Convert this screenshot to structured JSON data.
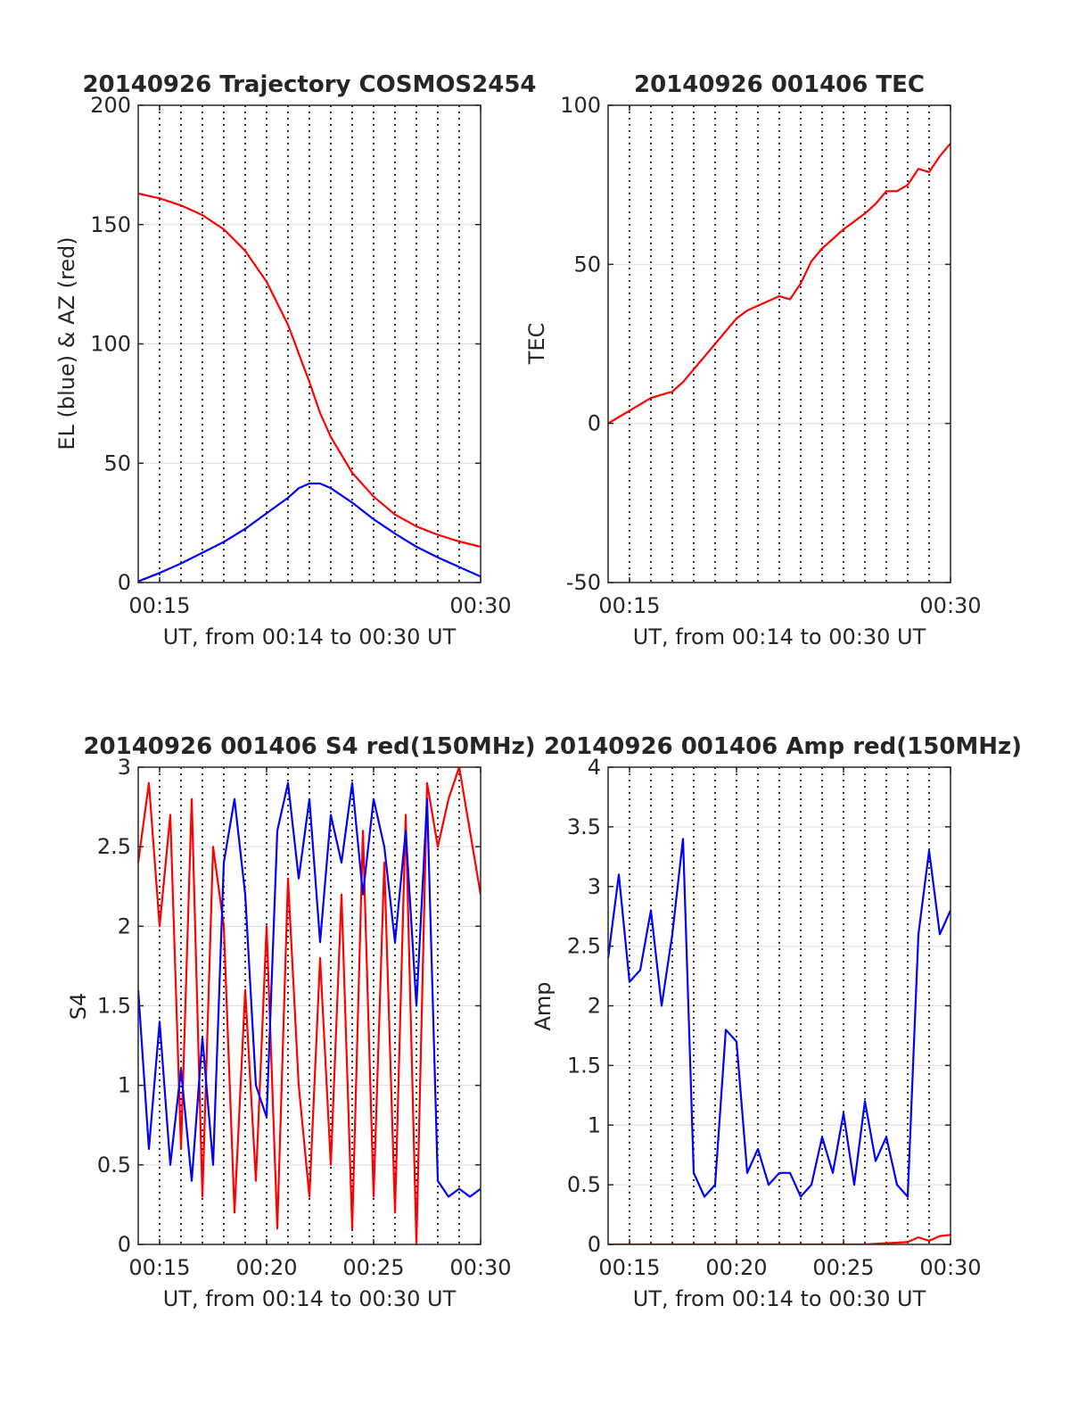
{
  "figure": {
    "background": "#ffffff",
    "colors": {
      "red": "#ff0000",
      "blue": "#0000ff",
      "grid": "#dcdcdc",
      "axis": "#262626"
    }
  },
  "chart_data": [
    {
      "type": "line",
      "title": "20140926 Trajectory COSMOS2454",
      "xlabel": "UT, from 00:14 to 00:30 UT",
      "ylabel": "EL (blue) & AZ (red)",
      "xlim": [
        "00:14:00",
        "00:30:00"
      ],
      "ylim": [
        0,
        200
      ],
      "yticks": [
        0,
        50,
        100,
        150,
        200
      ],
      "xticks": [
        {
          "t": "00:15:00",
          "label": "00:15"
        },
        {
          "t": "00:30:00",
          "label": "00:30"
        }
      ],
      "vlines_minutes": [
        15,
        16,
        17,
        18,
        19,
        20,
        21,
        22,
        23,
        24,
        25,
        26,
        27,
        28,
        29
      ],
      "grid": true,
      "series": [
        {
          "color": "#ff0000",
          "x": [
            "00:14:00",
            "00:15:00",
            "00:16:00",
            "00:17:00",
            "00:18:00",
            "00:19:00",
            "00:20:00",
            "00:21:00",
            "00:21:30",
            "00:22:00",
            "00:22:30",
            "00:23:00",
            "00:24:00",
            "00:25:00",
            "00:26:00",
            "00:27:00",
            "00:28:00",
            "00:29:00",
            "00:30:00"
          ],
          "values": [
            163,
            161,
            158,
            154,
            148,
            139,
            126,
            108,
            96,
            84,
            71,
            61,
            46,
            36,
            28.5,
            23.5,
            20,
            17.2,
            15
          ]
        },
        {
          "color": "#0000ff",
          "x": [
            "00:14:00",
            "00:15:00",
            "00:16:00",
            "00:17:00",
            "00:18:00",
            "00:19:00",
            "00:20:00",
            "00:21:00",
            "00:21:30",
            "00:22:00",
            "00:22:30",
            "00:23:00",
            "00:24:00",
            "00:25:00",
            "00:26:00",
            "00:27:00",
            "00:28:00",
            "00:29:00",
            "00:30:00"
          ],
          "values": [
            0.5,
            4,
            8,
            12.5,
            17,
            22.5,
            29,
            35.5,
            39.5,
            41.5,
            41.5,
            39.5,
            33.5,
            26.5,
            20.5,
            15,
            10.5,
            6.5,
            2.5
          ]
        }
      ]
    },
    {
      "type": "line",
      "title": "20140926 001406 TEC",
      "xlabel": "UT, from 00:14 to 00:30 UT",
      "ylabel": "TEC",
      "xlim": [
        "00:14:00",
        "00:30:00"
      ],
      "ylim": [
        -50,
        100
      ],
      "yticks": [
        -50,
        0,
        50,
        100
      ],
      "xticks": [
        {
          "t": "00:15:00",
          "label": "00:15"
        },
        {
          "t": "00:30:00",
          "label": "00:30"
        }
      ],
      "vlines_minutes": [
        15,
        16,
        17,
        18,
        19,
        20,
        21,
        22,
        23,
        24,
        25,
        26,
        27,
        28,
        29
      ],
      "grid": true,
      "series": [
        {
          "color": "#ff0000",
          "x": [
            "00:14:00",
            "00:14:30",
            "00:15:00",
            "00:15:30",
            "00:16:00",
            "00:16:30",
            "00:17:00",
            "00:17:30",
            "00:18:00",
            "00:18:30",
            "00:19:00",
            "00:19:30",
            "00:20:00",
            "00:20:30",
            "00:21:00",
            "00:21:30",
            "00:22:00",
            "00:22:30",
            "00:23:00",
            "00:23:30",
            "00:24:00",
            "00:24:30",
            "00:25:00",
            "00:25:30",
            "00:26:00",
            "00:26:30",
            "00:27:00",
            "00:27:30",
            "00:28:00",
            "00:28:30",
            "00:29:00",
            "00:29:30",
            "00:30:00"
          ],
          "values": [
            0,
            2,
            4,
            6,
            8,
            9,
            10,
            13,
            17,
            21,
            25,
            29,
            33,
            35.5,
            37,
            38.5,
            40,
            39,
            44,
            51,
            55,
            58,
            61,
            63.5,
            66,
            69,
            73,
            73,
            75,
            80,
            79,
            84,
            88
          ]
        }
      ]
    },
    {
      "type": "line",
      "title": "20140926 001406 S4 red(150MHz)",
      "xlabel": "UT, from 00:14 to 00:30 UT",
      "ylabel": "S4",
      "xlim": [
        "00:14:00",
        "00:30:00"
      ],
      "ylim": [
        0,
        3
      ],
      "yticks": [
        0,
        0.5,
        1,
        1.5,
        2,
        2.5,
        3
      ],
      "ytick_labels": [
        "0",
        "0.5",
        "1",
        "1.5",
        "2",
        "2.5",
        "3"
      ],
      "xticks": [
        {
          "t": "00:15:00",
          "label": "00:15"
        },
        {
          "t": "00:20:00",
          "label": "00:20"
        },
        {
          "t": "00:25:00",
          "label": "00:25"
        },
        {
          "t": "00:30:00",
          "label": "00:30"
        }
      ],
      "vlines_minutes": [
        15,
        16,
        17,
        18,
        19,
        20,
        21,
        22,
        23,
        24,
        25,
        26,
        27,
        28,
        29
      ],
      "grid": true,
      "series": [
        {
          "color": "#ff0000",
          "x": [
            "00:14:00",
            "00:14:30",
            "00:15:00",
            "00:15:30",
            "00:16:00",
            "00:16:30",
            "00:17:00",
            "00:17:30",
            "00:18:00",
            "00:18:30",
            "00:19:00",
            "00:19:30",
            "00:20:00",
            "00:20:30",
            "00:21:00",
            "00:21:30",
            "00:22:00",
            "00:22:30",
            "00:23:00",
            "00:23:30",
            "00:24:00",
            "00:24:30",
            "00:25:00",
            "00:25:30",
            "00:26:00",
            "00:26:30",
            "00:27:00",
            "00:27:30",
            "00:28:00",
            "00:28:30",
            "00:29:00",
            "00:29:30",
            "00:30:00"
          ],
          "values": [
            2.4,
            2.9,
            2.0,
            2.7,
            0.6,
            2.8,
            0.3,
            2.5,
            2.0,
            0.2,
            1.6,
            0.4,
            2.0,
            0.1,
            2.3,
            1.0,
            0.3,
            1.8,
            0.5,
            2.2,
            0.1,
            2.6,
            0.3,
            2.4,
            0.2,
            2.7,
            0.0,
            2.9,
            2.5,
            2.8,
            3.0,
            2.6,
            2.2
          ]
        },
        {
          "color": "#0000ff",
          "x": [
            "00:14:00",
            "00:14:30",
            "00:15:00",
            "00:15:30",
            "00:16:00",
            "00:16:30",
            "00:17:00",
            "00:17:30",
            "00:18:00",
            "00:18:30",
            "00:19:00",
            "00:19:30",
            "00:20:00",
            "00:20:30",
            "00:21:00",
            "00:21:30",
            "00:22:00",
            "00:22:30",
            "00:23:00",
            "00:23:30",
            "00:24:00",
            "00:24:30",
            "00:25:00",
            "00:25:30",
            "00:26:00",
            "00:26:30",
            "00:27:00",
            "00:27:30",
            "00:28:00",
            "00:28:30",
            "00:29:00",
            "00:29:30",
            "00:30:00"
          ],
          "values": [
            1.6,
            0.6,
            1.4,
            0.5,
            1.1,
            0.4,
            1.3,
            0.5,
            2.4,
            2.8,
            2.2,
            1.0,
            0.8,
            2.6,
            2.9,
            2.3,
            2.8,
            1.9,
            2.7,
            2.4,
            2.9,
            2.2,
            2.8,
            2.5,
            1.9,
            2.6,
            1.5,
            2.8,
            0.4,
            0.3,
            0.35,
            0.3,
            0.35
          ]
        }
      ]
    },
    {
      "type": "line",
      "title": "20140926 001406 Amp red(150MHz)",
      "xlabel": "UT, from 00:14 to 00:30 UT",
      "ylabel": "Amp",
      "xlim": [
        "00:14:00",
        "00:30:00"
      ],
      "ylim": [
        0,
        4
      ],
      "yticks": [
        0,
        0.5,
        1,
        1.5,
        2,
        2.5,
        3,
        3.5,
        4
      ],
      "ytick_labels": [
        "0",
        "0.5",
        "1",
        "1.5",
        "2",
        "2.5",
        "3",
        "3.5",
        "4"
      ],
      "xticks": [
        {
          "t": "00:15:00",
          "label": "00:15"
        },
        {
          "t": "00:20:00",
          "label": "00:20"
        },
        {
          "t": "00:25:00",
          "label": "00:25"
        },
        {
          "t": "00:30:00",
          "label": "00:30"
        }
      ],
      "vlines_minutes": [
        15,
        16,
        17,
        18,
        19,
        20,
        21,
        22,
        23,
        24,
        25,
        26,
        27,
        28,
        29
      ],
      "grid": true,
      "series": [
        {
          "color": "#0000ff",
          "x": [
            "00:14:00",
            "00:14:30",
            "00:15:00",
            "00:15:30",
            "00:16:00",
            "00:16:30",
            "00:17:00",
            "00:17:30",
            "00:18:00",
            "00:18:30",
            "00:19:00",
            "00:19:30",
            "00:20:00",
            "00:20:30",
            "00:21:00",
            "00:21:30",
            "00:22:00",
            "00:22:30",
            "00:23:00",
            "00:23:30",
            "00:24:00",
            "00:24:30",
            "00:25:00",
            "00:25:30",
            "00:26:00",
            "00:26:30",
            "00:27:00",
            "00:27:30",
            "00:28:00",
            "00:28:30",
            "00:29:00",
            "00:29:30",
            "00:30:00"
          ],
          "values": [
            2.4,
            3.1,
            2.2,
            2.3,
            2.8,
            2.0,
            2.6,
            3.4,
            0.6,
            0.4,
            0.5,
            1.8,
            1.7,
            0.6,
            0.8,
            0.5,
            0.6,
            0.6,
            0.4,
            0.5,
            0.9,
            0.6,
            1.1,
            0.5,
            1.2,
            0.7,
            0.9,
            0.5,
            0.4,
            2.6,
            3.3,
            2.6,
            2.8
          ]
        },
        {
          "color": "#ff0000",
          "x": [
            "00:14:00",
            "00:18:00",
            "00:22:00",
            "00:26:00",
            "00:28:00",
            "00:28:30",
            "00:29:00",
            "00:29:30",
            "00:30:00"
          ],
          "values": [
            0,
            0,
            0,
            0,
            0.02,
            0.06,
            0.03,
            0.07,
            0.08
          ]
        }
      ]
    }
  ]
}
